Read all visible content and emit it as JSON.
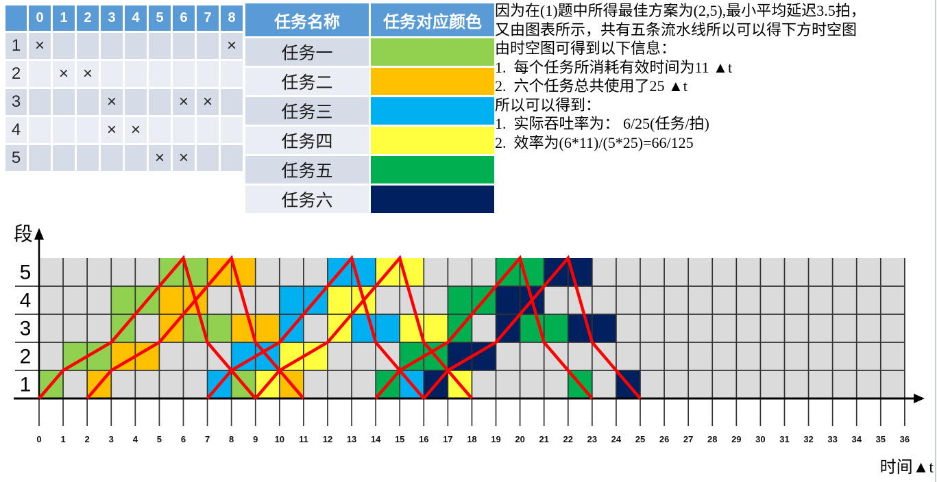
{
  "palette": {
    "table_header": "#5B9BD5",
    "row_dark": "#D5DCE8",
    "row_light": "#EAEDF4",
    "grid_line": "#333333",
    "axis_color": "#000000"
  },
  "reservation_table": {
    "col_headers": [
      "",
      "0",
      "1",
      "2",
      "3",
      "4",
      "5",
      "6",
      "7",
      "8"
    ],
    "mark": "×",
    "rows": [
      {
        "label": "1",
        "marks": [
          0,
          8
        ]
      },
      {
        "label": "2",
        "marks": [
          1,
          2
        ]
      },
      {
        "label": "3",
        "marks": [
          3,
          6,
          7
        ]
      },
      {
        "label": "4",
        "marks": [
          3,
          4
        ]
      },
      {
        "label": "5",
        "marks": [
          5,
          6
        ]
      }
    ]
  },
  "legend": {
    "name_header": "任务名称",
    "color_header": "任务对应颜色",
    "rows": [
      {
        "name": "任务一",
        "color": "#92D050"
      },
      {
        "name": "任务二",
        "color": "#FFC000"
      },
      {
        "name": "任务三",
        "color": "#00B0F0"
      },
      {
        "name": "任务四",
        "color": "#FFFF3F"
      },
      {
        "name": "任务五",
        "color": "#00B050"
      },
      {
        "name": "任务六",
        "color": "#002060"
      }
    ]
  },
  "notes": {
    "lines": [
      "因为在(1)题中所得最佳方案为(2,5),最小平均延迟3.5拍，",
      "又由图表所示，共有五条流水线所以可以得下方时空图",
      "由时空图可得到以下信息：",
      "1.  每个任务所消耗有效时间为11 ▲t",
      "2.  六个任务总共使用了25 ▲t",
      "所以可以得到：",
      "1.  实际吞吐率为： 6/25(任务/拍)",
      "2.  效率为(6*11)/(5*25)=66/125"
    ]
  },
  "chart_data": {
    "type": "heatmap",
    "description": "流水线时空图：5个流水段 × 36拍，6个任务按(2,5)启动循环流入，红线为任务轨迹",
    "ylabel": "段",
    "xlabel": "时间▲t",
    "row_labels": [
      "5",
      "4",
      "3",
      "2",
      "1"
    ],
    "x_ticks": [
      0,
      1,
      2,
      3,
      4,
      5,
      6,
      7,
      8,
      9,
      10,
      11,
      12,
      13,
      14,
      15,
      16,
      17,
      18,
      19,
      20,
      21,
      22,
      23,
      24,
      25,
      26,
      27,
      28,
      29,
      30,
      31,
      32,
      33,
      34,
      35,
      36
    ],
    "x_range": [
      0,
      36
    ],
    "cell_color_empty": "#DBDBDB",
    "trajectory_color": "#FF0000",
    "tasks": [
      {
        "name": "任务一",
        "color": "#92D050",
        "launch": 0
      },
      {
        "name": "任务二",
        "color": "#FFC000",
        "launch": 2
      },
      {
        "name": "任务三",
        "color": "#00B0F0",
        "launch": 7
      },
      {
        "name": "任务四",
        "color": "#FFFF3F",
        "launch": 9
      },
      {
        "name": "任务五",
        "color": "#00B050",
        "launch": 14
      },
      {
        "name": "任务六",
        "color": "#002060",
        "launch": 16
      }
    ],
    "occupancy": {
      "stage5": [
        [
          5,
          1
        ],
        [
          6,
          1
        ],
        [
          7,
          2
        ],
        [
          8,
          2
        ],
        [
          12,
          3
        ],
        [
          13,
          3
        ],
        [
          14,
          4
        ],
        [
          15,
          4
        ],
        [
          19,
          5
        ],
        [
          20,
          5
        ],
        [
          21,
          6
        ],
        [
          22,
          6
        ]
      ],
      "stage4": [
        [
          3,
          1
        ],
        [
          4,
          1
        ],
        [
          5,
          2
        ],
        [
          6,
          2
        ],
        [
          10,
          3
        ],
        [
          11,
          3
        ],
        [
          12,
          4
        ],
        [
          13,
          4
        ],
        [
          17,
          5
        ],
        [
          18,
          5
        ],
        [
          19,
          6
        ],
        [
          20,
          6
        ]
      ],
      "stage3": [
        [
          3,
          1
        ],
        [
          5,
          2
        ],
        [
          6,
          1
        ],
        [
          7,
          1
        ],
        [
          8,
          2
        ],
        [
          9,
          2
        ],
        [
          10,
          3
        ],
        [
          12,
          4
        ],
        [
          13,
          3
        ],
        [
          14,
          3
        ],
        [
          15,
          4
        ],
        [
          16,
          4
        ],
        [
          17,
          5
        ],
        [
          19,
          6
        ],
        [
          20,
          5
        ],
        [
          21,
          5
        ],
        [
          22,
          6
        ],
        [
          23,
          6
        ]
      ],
      "stage2": [
        [
          1,
          1
        ],
        [
          2,
          1
        ],
        [
          3,
          2
        ],
        [
          4,
          2
        ],
        [
          8,
          3
        ],
        [
          9,
          3
        ],
        [
          10,
          4
        ],
        [
          11,
          4
        ],
        [
          15,
          5
        ],
        [
          16,
          5
        ],
        [
          17,
          6
        ],
        [
          18,
          6
        ]
      ],
      "stage1": [
        [
          0,
          1
        ],
        [
          2,
          2
        ],
        [
          7,
          3
        ],
        [
          8,
          1
        ],
        [
          9,
          4
        ],
        [
          10,
          2
        ],
        [
          14,
          5
        ],
        [
          15,
          3
        ],
        [
          16,
          6
        ],
        [
          17,
          4
        ],
        [
          22,
          5
        ],
        [
          24,
          6
        ]
      ]
    },
    "trajectory_shape": [
      [
        0,
        0
      ],
      [
        1,
        1
      ],
      [
        3,
        2
      ],
      [
        6,
        5
      ],
      [
        7,
        2
      ],
      [
        9,
        0
      ]
    ]
  }
}
